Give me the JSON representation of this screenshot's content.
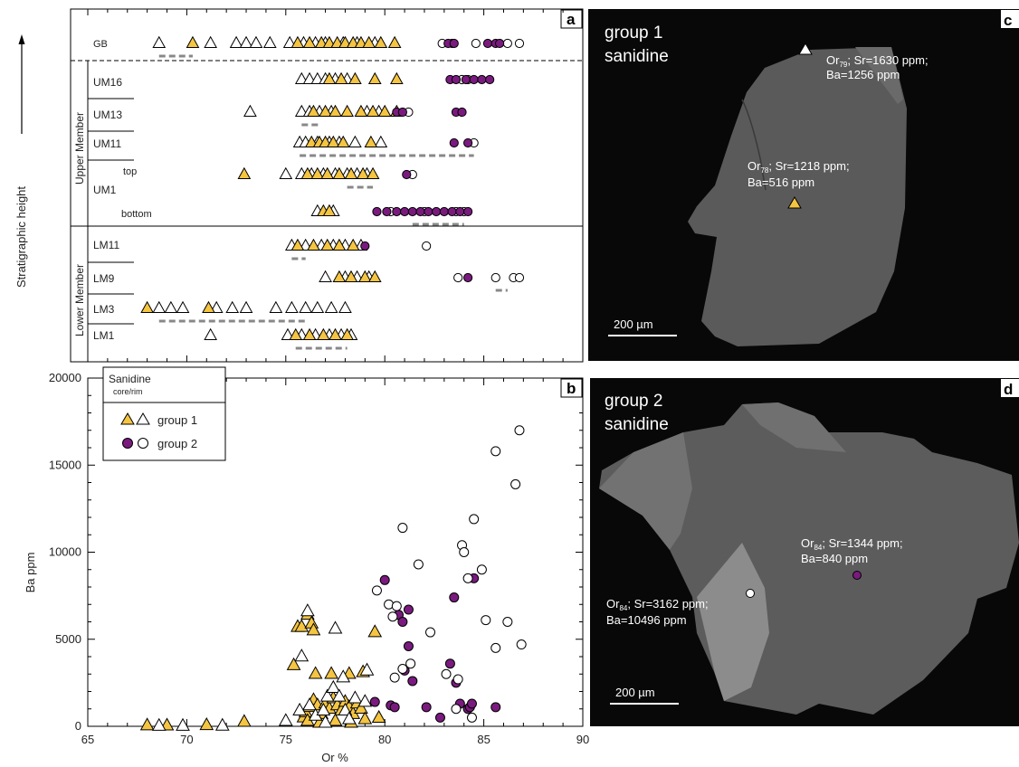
{
  "colors": {
    "group1": "#f5c542",
    "group2": "#7a1a7e",
    "open": "#ffffff",
    "sem_bg": "#080808",
    "crystal": "#5a5a5a",
    "crystal_light": "#6e6e6e",
    "crystal_bright": "#8c8c8c",
    "tie": "#888888"
  },
  "panel_a": {
    "letter": "a",
    "side_title": "Stratigraphic height",
    "upper_label": "Upper Member",
    "lower_label": "Lower Member",
    "units": [
      "GB",
      "UM16",
      "UM13",
      "UM11",
      "top",
      "UM1",
      "bottom",
      "LM11",
      "LM9",
      "LM3",
      "LM1"
    ]
  },
  "panel_b": {
    "letter": "b",
    "legend_title": "Sanidine",
    "legend_subtitle": "core/rim",
    "legend_g1": "group 1",
    "legend_g2": "group 2"
  },
  "panel_c": {
    "letter": "c",
    "title_line1": "group 1",
    "title_line2": "sanidine",
    "ann1_l1a": "Or",
    "ann1_sub": "79",
    "ann1_l1b": "; Sr=1630 ppm;",
    "ann1_l2": "Ba=1256 ppm",
    "ann2_l1a": "Or",
    "ann2_sub": "78",
    "ann2_l1b": "; Sr=1218 ppm;",
    "ann2_l2": "Ba=516 ppm",
    "scale": "200 µm"
  },
  "panel_d": {
    "letter": "d",
    "title_line1": "group 2",
    "title_line2": "sanidine",
    "ann1_l1a": "Or",
    "ann1_sub": "84",
    "ann1_l1b": "; Sr=1344 ppm;",
    "ann1_l2": "Ba=840 ppm",
    "ann2_l1a": "Or",
    "ann2_sub": "84",
    "ann2_l1b": "; Sr=3162 ppm;",
    "ann2_l2": "Ba=10496 ppm",
    "scale": "200 µm"
  },
  "chart_data": [
    {
      "type": "scatter",
      "panel": "a",
      "xlim": [
        65,
        90
      ],
      "rows": [
        {
          "unit": "GB",
          "g1_tri": [
            70.3,
            75.6,
            76.2,
            76.8,
            77.2,
            77.6,
            78.0,
            78.4,
            78.8,
            79.2,
            79.8,
            80.5
          ],
          "open_tri": [
            68.6,
            71.2,
            72.5,
            73.0,
            73.5,
            74.2,
            75.2,
            75.9,
            76.5,
            77.0,
            77.9,
            78.6,
            79.5
          ],
          "g2": [
            83.2,
            83.5,
            85.2,
            85.6,
            85.8
          ],
          "open_circ": [
            82.9,
            83.4,
            84.6,
            86.2,
            86.8
          ]
        },
        {
          "unit": "UM16",
          "g1_tri": [
            77.2,
            77.8,
            78.5,
            79.5,
            80.6
          ],
          "open_tri": [
            75.8,
            76.2,
            76.6,
            77.0,
            77.5,
            78.1
          ],
          "g2": [
            83.3,
            83.6,
            84.1,
            84.5,
            84.9,
            85.3
          ],
          "open_circ": [
            83.9,
            84.2
          ]
        },
        {
          "unit": "UM13",
          "g1_tri": [
            76.4,
            77.0,
            77.5,
            78.1,
            78.8,
            79.4,
            80.0,
            80.6
          ],
          "open_tri": [
            73.2,
            75.8,
            76.2,
            76.7,
            77.3,
            79.1,
            79.7
          ],
          "g2": [
            80.6,
            80.9,
            83.6,
            83.9
          ],
          "open_circ": [
            81.2
          ]
        },
        {
          "unit": "UM11",
          "g1_tri": [
            76.3,
            76.7,
            77.0,
            77.4,
            77.9,
            79.3
          ],
          "open_tri": [
            75.7,
            76.0,
            76.6,
            77.2,
            77.7,
            78.5,
            79.8
          ],
          "g2": [
            83.5,
            84.2
          ],
          "open_circ": [
            84.5
          ]
        },
        {
          "unit": "UM1 top",
          "g1_tri": [
            72.9,
            76.1,
            76.6,
            77.1,
            77.7,
            78.3,
            78.9,
            79.4
          ],
          "open_tri": [
            75.0,
            75.8,
            76.3,
            76.9,
            77.5,
            78.1,
            78.6,
            79.1
          ],
          "g2": [
            81.1
          ],
          "open_circ": [
            81.4
          ]
        },
        {
          "unit": "UM1 bottom",
          "g1_tri": [
            76.9,
            77.2
          ],
          "open_tri": [
            76.6,
            77.4
          ],
          "g2": [
            79.6,
            80.1,
            80.6,
            81.0,
            81.4,
            81.8,
            82.2,
            82.6,
            83.0,
            83.4,
            83.8,
            84.2
          ],
          "open_circ": [
            80.3,
            82.0,
            83.6,
            84.0
          ]
        },
        {
          "unit": "LM11",
          "g1_tri": [
            75.6,
            76.4,
            77.1,
            77.7,
            78.4
          ],
          "open_tri": [
            75.3,
            76.0,
            76.8,
            77.4,
            78.0,
            78.8
          ],
          "g2": [
            79.0
          ],
          "open_circ": [
            82.1
          ]
        },
        {
          "unit": "LM9",
          "g1_tri": [
            77.7,
            78.3,
            79.0,
            79.5
          ],
          "open_tri": [
            77.0,
            78.0,
            78.6,
            79.2
          ],
          "g2": [
            84.2
          ],
          "open_circ": [
            83.7,
            85.6,
            86.5,
            86.8
          ]
        },
        {
          "unit": "LM3",
          "g1_tri": [
            68.0,
            71.1
          ],
          "open_tri": [
            68.6,
            69.2,
            69.8,
            71.5,
            72.3,
            73.0,
            74.5,
            75.3,
            76.0,
            76.6,
            77.3,
            78.0
          ],
          "g2": [],
          "open_circ": []
        },
        {
          "unit": "LM1",
          "g1_tri": [
            75.5,
            76.2,
            76.9,
            77.5,
            78.1
          ],
          "open_tri": [
            71.2,
            75.1,
            75.8,
            76.5,
            77.2,
            77.8,
            78.3
          ],
          "g2": [],
          "open_circ": []
        }
      ]
    },
    {
      "type": "scatter",
      "panel": "b",
      "xlabel": "Or %",
      "ylabel": "Ba ppm",
      "xlim": [
        65,
        90
      ],
      "ylim": [
        0,
        20000
      ],
      "xticks": [
        65,
        70,
        75,
        80,
        85,
        90
      ],
      "yticks": [
        0,
        5000,
        10000,
        15000,
        20000
      ],
      "series": [
        {
          "name": "group 1 core",
          "marker": "triangle-filled",
          "points": [
            [
              68.0,
              50
            ],
            [
              69.0,
              40
            ],
            [
              71.0,
              60
            ],
            [
              72.9,
              250
            ],
            [
              75.4,
              3500
            ],
            [
              75.6,
              5700
            ],
            [
              75.8,
              5700
            ],
            [
              76.1,
              6400
            ],
            [
              76.3,
              5900
            ],
            [
              76.4,
              5500
            ],
            [
              76.5,
              3000
            ],
            [
              77.3,
              3000
            ],
            [
              78.2,
              3000
            ],
            [
              78.9,
              3100
            ],
            [
              79.5,
              5400
            ],
            [
              79.7,
              480
            ],
            [
              75.9,
              500
            ],
            [
              76.0,
              800
            ],
            [
              76.2,
              1100
            ],
            [
              76.4,
              1500
            ],
            [
              76.6,
              1200
            ],
            [
              76.8,
              700
            ],
            [
              77.0,
              1300
            ],
            [
              77.2,
              1000
            ],
            [
              77.4,
              1600
            ],
            [
              77.6,
              1200
            ],
            [
              77.8,
              900
            ],
            [
              78.0,
              1400
            ],
            [
              78.2,
              1100
            ],
            [
              78.4,
              700
            ],
            [
              78.6,
              1300
            ],
            [
              78.8,
              1000
            ],
            [
              79.0,
              400
            ],
            [
              76.1,
              300
            ],
            [
              76.7,
              200
            ],
            [
              77.5,
              300
            ],
            [
              78.3,
              200
            ]
          ]
        },
        {
          "name": "group 1 rim",
          "marker": "triangle-open",
          "points": [
            [
              68.6,
              20
            ],
            [
              69.8,
              20
            ],
            [
              71.8,
              30
            ],
            [
              75.0,
              300
            ],
            [
              75.8,
              4000
            ],
            [
              76.1,
              6600
            ],
            [
              77.5,
              5600
            ],
            [
              77.9,
              2800
            ],
            [
              79.1,
              3200
            ],
            [
              75.7,
              900
            ],
            [
              76.2,
              1200
            ],
            [
              76.5,
              600
            ],
            [
              76.9,
              900
            ],
            [
              77.1,
              1700
            ],
            [
              77.4,
              2200
            ],
            [
              77.7,
              1700
            ],
            [
              78.0,
              900
            ],
            [
              78.5,
              1600
            ],
            [
              79.0,
              1400
            ],
            [
              78.2,
              400
            ],
            [
              77.0,
              200
            ]
          ]
        },
        {
          "name": "group 2 core",
          "marker": "circle-filled",
          "points": [
            [
              79.5,
              1400
            ],
            [
              80.0,
              8400
            ],
            [
              80.3,
              1200
            ],
            [
              80.5,
              1100
            ],
            [
              80.7,
              6400
            ],
            [
              80.9,
              6000
            ],
            [
              81.0,
              3200
            ],
            [
              81.2,
              6700
            ],
            [
              81.2,
              4600
            ],
            [
              81.4,
              2600
            ],
            [
              82.1,
              1100
            ],
            [
              82.8,
              500
            ],
            [
              83.3,
              3600
            ],
            [
              83.5,
              7400
            ],
            [
              83.6,
              2500
            ],
            [
              83.8,
              1300
            ],
            [
              84.2,
              1000
            ],
            [
              84.3,
              1100
            ],
            [
              84.4,
              1300
            ],
            [
              84.5,
              8500
            ],
            [
              85.6,
              1100
            ]
          ]
        },
        {
          "name": "group 2 rim",
          "marker": "circle-open",
          "points": [
            [
              79.6,
              7800
            ],
            [
              80.2,
              7000
            ],
            [
              80.4,
              6300
            ],
            [
              80.6,
              6900
            ],
            [
              80.9,
              11400
            ],
            [
              81.7,
              9300
            ],
            [
              82.3,
              5400
            ],
            [
              80.5,
              2800
            ],
            [
              80.9,
              3300
            ],
            [
              81.3,
              3600
            ],
            [
              83.1,
              3000
            ],
            [
              83.9,
              10400
            ],
            [
              84.0,
              10000
            ],
            [
              84.2,
              8500
            ],
            [
              84.5,
              11900
            ],
            [
              84.9,
              9000
            ],
            [
              85.1,
              6100
            ],
            [
              85.6,
              15800
            ],
            [
              86.2,
              6000
            ],
            [
              86.6,
              13900
            ],
            [
              86.8,
              17000
            ],
            [
              86.9,
              4700
            ],
            [
              85.6,
              4500
            ],
            [
              83.7,
              2700
            ],
            [
              83.6,
              1000
            ],
            [
              84.4,
              500
            ]
          ]
        }
      ]
    }
  ]
}
